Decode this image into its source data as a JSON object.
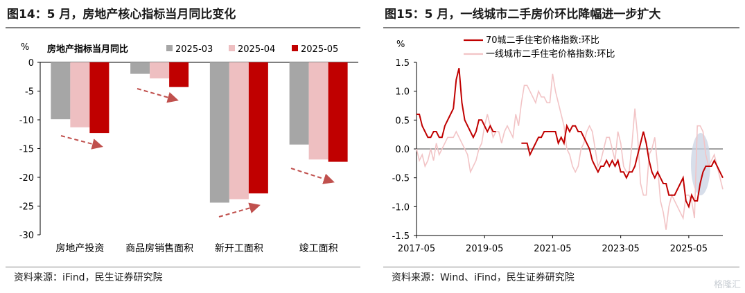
{
  "left": {
    "title": "图14：5 月，房地产核心指标当月同比变化",
    "source": "资料来源：iFind，民生证券研究院",
    "chart_data": {
      "type": "bar",
      "title": "房地产指标当月同比",
      "ylabel": "%",
      "ylim": [
        -30,
        0
      ],
      "yticks": [
        "0",
        "-5",
        "-10",
        "-15",
        "-20",
        "-25",
        "-30"
      ],
      "categories": [
        "房地产投资",
        "商品房销售面积",
        "新开工面积",
        "竣工面积"
      ],
      "series": [
        {
          "name": "2025-03",
          "color": "#a6a6a6",
          "values": [
            -9.9,
            -2.0,
            -24.4,
            -14.3
          ]
        },
        {
          "name": "2025-04",
          "color": "#eebfc1",
          "values": [
            -11.3,
            -2.8,
            -23.8,
            -16.9
          ]
        },
        {
          "name": "2025-05",
          "color": "#c00000",
          "values": [
            -12.3,
            -4.3,
            -22.8,
            -17.3
          ]
        }
      ],
      "legend_position": "top",
      "annotations": "dashed arrows showing trend beside each group"
    }
  },
  "right": {
    "title": "图15：5 月，一线城市二手房价环比降幅进一步扩大",
    "source": "资料来源：Wind、iFind，民生证券研究院",
    "watermark": "格隆汇",
    "chart_data": {
      "type": "line",
      "ylabel": "%",
      "ylim": [
        -1.5,
        1.5
      ],
      "yticks": [
        "1.5",
        "1.0",
        "0.5",
        "0.0",
        "-0.5",
        "-1.0",
        "-1.5"
      ],
      "xticks": [
        "2017-05",
        "2019-05",
        "2021-05",
        "2023-05",
        "2025-05"
      ],
      "x_start": "2017-05",
      "x_end": "2025-05",
      "legend_position": "top-left",
      "series": [
        {
          "name": "70城二手住宅价格指数:环比",
          "color": "#c00000",
          "values": [
            0.6,
            0.6,
            0.4,
            0.3,
            0.2,
            0.2,
            0.3,
            0.3,
            0.2,
            0.2,
            0.4,
            0.5,
            0.6,
            0.7,
            1.2,
            1.4,
            0.8,
            0.5,
            0.4,
            0.3,
            0.2,
            0.3,
            0.5,
            0.5,
            0.4,
            0.3,
            0.4,
            0.3,
            0.3,
            null,
            null,
            null,
            null,
            null,
            null,
            null,
            null,
            0.1,
            0.1,
            0.1,
            -0.1,
            0.0,
            0.1,
            0.2,
            0.2,
            0.3,
            0.3,
            0.3,
            0.3,
            0.3,
            0.1,
            0.2,
            0.1,
            0.4,
            0.3,
            0.4,
            0.4,
            0.3,
            0.3,
            0.2,
            0.1,
            0.0,
            -0.2,
            -0.3,
            -0.4,
            -0.3,
            -0.3,
            -0.2,
            -0.3,
            -0.2,
            -0.3,
            -0.2,
            -0.4,
            -0.4,
            -0.5,
            -0.4,
            -0.4,
            -0.3,
            -0.1,
            0.1,
            0.3,
            0.1,
            -0.2,
            -0.4,
            -0.5,
            -0.4,
            -0.5,
            -0.6,
            -0.6,
            -0.8,
            -0.8,
            -0.8,
            -0.7,
            -0.6,
            -0.5,
            -0.9,
            -1.0,
            -0.8,
            -0.9,
            -0.9,
            -0.6,
            -0.4,
            -0.3,
            -0.3,
            -0.3,
            -0.2,
            -0.3,
            -0.4,
            -0.5
          ]
        },
        {
          "name": "一线城市二手住宅价格指数:环比",
          "color": "#f2c4c6",
          "values": [
            0.0,
            -0.2,
            -0.1,
            -0.3,
            -0.2,
            0.0,
            -0.2,
            0.1,
            -0.1,
            0.0,
            0.1,
            0.2,
            0.2,
            0.2,
            0.3,
            0.2,
            0.1,
            0.0,
            -0.1,
            -0.4,
            -0.3,
            -0.2,
            0.0,
            0.1,
            0.4,
            0.6,
            0.4,
            0.2,
            0.3,
            0.3,
            0.1,
            0.3,
            0.4,
            0.3,
            0.2,
            0.6,
            0.4,
            0.8,
            1.1,
            1.1,
            1.0,
            0.9,
            0.8,
            1.0,
            0.9,
            0.9,
            0.8,
            0.8,
            1.3,
            1.0,
            0.8,
            0.6,
            0.4,
            0.0,
            -0.1,
            -0.3,
            -0.4,
            -0.3,
            0.0,
            0.1,
            0.3,
            0.4,
            0.3,
            0.0,
            -0.3,
            -0.2,
            0.0,
            0.2,
            0.2,
            0.0,
            -0.2,
            0.3,
            0.1,
            -0.3,
            -0.4,
            -0.4,
            0.1,
            0.7,
            0.2,
            -0.6,
            -0.8,
            -0.8,
            -0.1,
            0.0,
            0.2,
            -0.3,
            -0.9,
            -1.1,
            -1.4,
            -1.0,
            -0.8,
            -0.9,
            -1.0,
            -1.1,
            -1.2,
            -0.8,
            -0.8,
            -0.9,
            -1.2,
            0.4,
            0.4,
            0.3,
            -0.1,
            -0.3,
            -0.2,
            -0.1,
            -0.3,
            -0.5,
            -0.7
          ]
        }
      ],
      "highlight": "ellipse around latest months"
    }
  }
}
